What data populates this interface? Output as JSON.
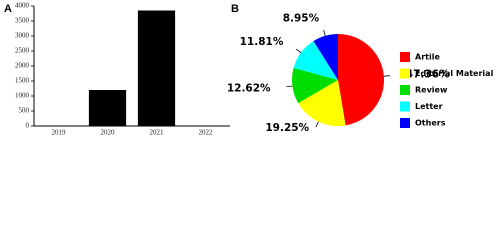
{
  "chart_data": [
    {
      "type": "bar",
      "label": "A",
      "categories": [
        "2019",
        "2020",
        "2021",
        "2022"
      ],
      "values": [
        0,
        1200,
        3850,
        0
      ],
      "color": "#000000",
      "ylim": [
        0,
        4000
      ],
      "yticks": [
        0,
        500,
        1000,
        1500,
        2000,
        2500,
        3000,
        3500,
        4000
      ]
    },
    {
      "type": "pie",
      "label": "B",
      "categories": [
        "Artile",
        "Editorial Material",
        "Review",
        "Letter",
        "Others"
      ],
      "values": [
        47.36,
        19.25,
        12.62,
        11.81,
        8.95
      ],
      "value_labels": [
        "47.36%",
        "19.25%",
        "12.62%",
        "11.81%",
        "8.95%"
      ],
      "colors": [
        "#ff0000",
        "#ffff00",
        "#00dd00",
        "#00ffff",
        "#0000ff"
      ],
      "legend": "right"
    }
  ]
}
